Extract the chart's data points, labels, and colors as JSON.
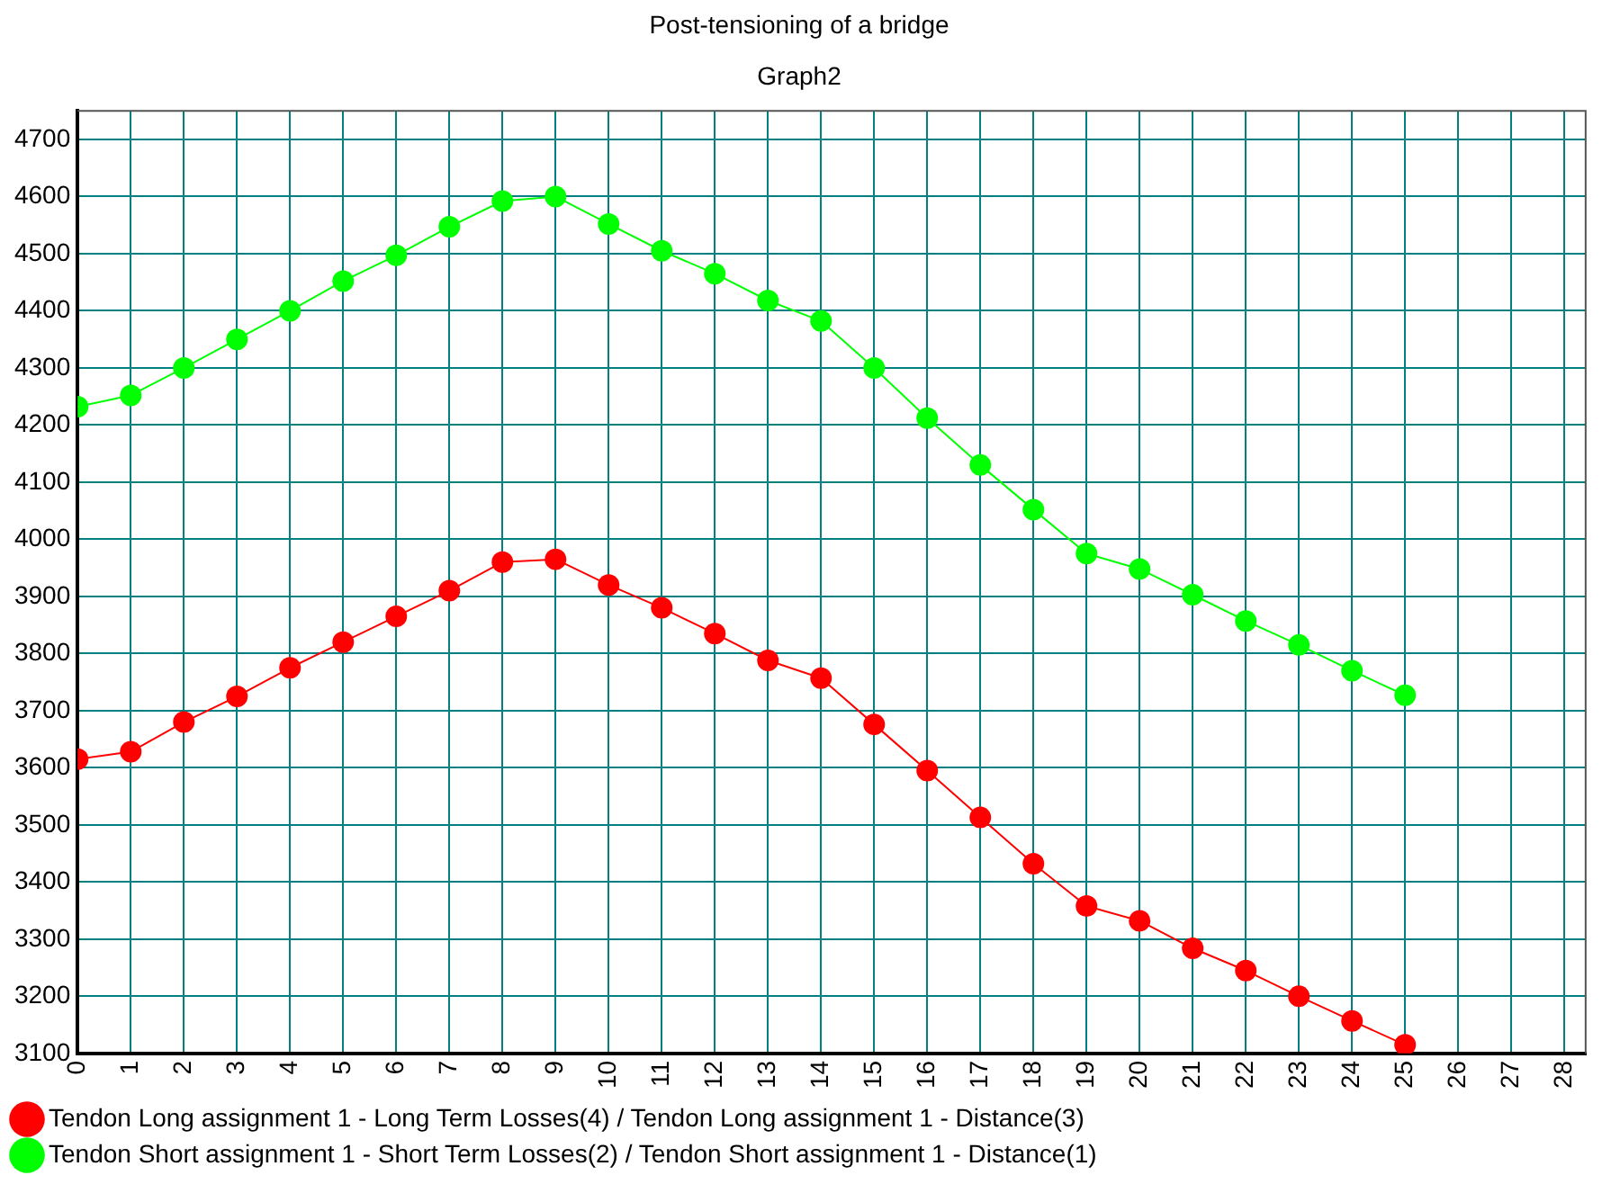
{
  "chart_data": {
    "type": "line",
    "title": "Post-tensioning of a bridge",
    "subtitle": "Graph2",
    "x": [
      0,
      1,
      2,
      3,
      4,
      5,
      6,
      7,
      8,
      9,
      10,
      11,
      12,
      13,
      14,
      15,
      16,
      17,
      18,
      19,
      20,
      21,
      22,
      23,
      24,
      25
    ],
    "series": [
      {
        "name": "Tendon Long assignment 1 - Long Term Losses(4) / Tendon Long assignment 1 - Distance(3)",
        "color": "#ff0000",
        "values": [
          3615,
          3628,
          3680,
          3725,
          3775,
          3820,
          3865,
          3910,
          3960,
          3965,
          3920,
          3880,
          3835,
          3788,
          3757,
          3676,
          3595,
          3513,
          3432,
          3358,
          3332,
          3284,
          3245,
          3200,
          3157,
          3115
        ]
      },
      {
        "name": "Tendon Short assignment 1 - Short Term Losses(2) / Tendon Short assignment 1 - Distance(1)",
        "color": "#00ff00",
        "values": [
          4232,
          4252,
          4300,
          4350,
          4400,
          4452,
          4497,
          4547,
          4592,
          4600,
          4552,
          4505,
          4465,
          4418,
          4382,
          4300,
          4212,
          4130,
          4052,
          3975,
          3948,
          3903,
          3857,
          3815,
          3770,
          3727
        ]
      }
    ],
    "xlim": [
      0,
      28.4
    ],
    "xticks": [
      0,
      1,
      2,
      3,
      4,
      5,
      6,
      7,
      8,
      9,
      10,
      11,
      12,
      13,
      14,
      15,
      16,
      17,
      18,
      19,
      20,
      21,
      22,
      23,
      24,
      25,
      26,
      27,
      28
    ],
    "ylim": [
      3100,
      4750
    ],
    "yticks": [
      3100,
      3200,
      3300,
      3400,
      3500,
      3600,
      3700,
      3800,
      3900,
      4000,
      4100,
      4200,
      4300,
      4400,
      4500,
      4600,
      4700
    ],
    "grid": true,
    "legend": "bottom",
    "marker": "circle",
    "line_style": "solid"
  }
}
